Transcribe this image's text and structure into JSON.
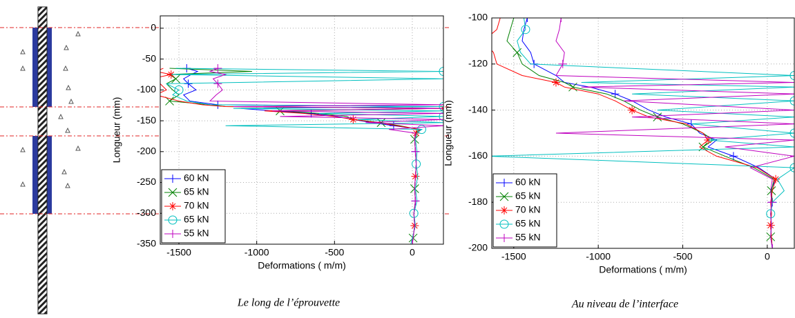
{
  "chart_data": [
    {
      "type": "line",
      "xlabel": "Deformations (  m/m)",
      "ylabel": "Longueur (mm)",
      "caption": "Le long de l’éprouvette",
      "xlim": [
        -1620,
        200
      ],
      "ylim": [
        -350,
        20
      ],
      "xticks": [
        -1500,
        -1000,
        -500,
        0
      ],
      "yticks": [
        0,
        -50,
        -100,
        -150,
        -200,
        -250,
        -300,
        -350
      ],
      "grid": true,
      "legend": "lower left",
      "series": [
        {
          "name": "60 kN",
          "color": "#0000ff",
          "marker": "+",
          "x": [
            -1450,
            -1380,
            -1420,
            -1470,
            -1440,
            -1390,
            -1470,
            -1430,
            -1250,
            200,
            -1100,
            -900,
            -650,
            -480,
            -380,
            -260,
            -120,
            60,
            20,
            15,
            20,
            25,
            20,
            15,
            20,
            10,
            15,
            5,
            0
          ],
          "values": [
            -65,
            -70,
            -75,
            -82,
            -90,
            -100,
            -108,
            -118,
            -124,
            -127,
            -130,
            -134,
            -138,
            -143,
            -148,
            -153,
            -158,
            -164,
            -170,
            -180,
            -200,
            -220,
            -240,
            -260,
            -280,
            -300,
            -320,
            -340,
            -350
          ]
        },
        {
          "name": "65 kN",
          "color": "#008000",
          "marker": "x",
          "x": [
            -1560,
            -1030,
            -1560,
            -1520,
            -1580,
            -1540,
            -1500,
            -1560,
            -1300,
            -1200,
            200,
            -850,
            -600,
            -420,
            -380,
            -200,
            -80,
            40,
            20,
            15,
            20,
            25,
            20,
            15,
            20,
            10,
            15,
            5,
            0
          ],
          "values": [
            -65,
            -70,
            -75,
            -82,
            -90,
            -100,
            -108,
            -118,
            -124,
            -127,
            -130,
            -134,
            -138,
            -143,
            -148,
            -153,
            -158,
            -164,
            -170,
            -180,
            -200,
            -220,
            -240,
            -260,
            -280,
            -300,
            -320,
            -340,
            -350
          ]
        },
        {
          "name": "70 kN",
          "color": "#ff0000",
          "marker": "*",
          "x": [
            -1600,
            -1650,
            -1550,
            -1680,
            -1620,
            -1580,
            -1650,
            -1500,
            -1350,
            -1200,
            200,
            -950,
            -700,
            -500,
            -380,
            -220,
            -100,
            50,
            25,
            15,
            20,
            25,
            20,
            15,
            20,
            10,
            15,
            5,
            0
          ],
          "values": [
            -65,
            -70,
            -75,
            -82,
            -90,
            -100,
            -108,
            -118,
            -124,
            -127,
            -130,
            -134,
            -138,
            -143,
            -148,
            -153,
            -158,
            -164,
            -170,
            -180,
            -200,
            -220,
            -240,
            -260,
            -280,
            -300,
            -320,
            -340,
            -350
          ]
        },
        {
          "name": "65 kN",
          "color": "#00bfbf",
          "marker": "o",
          "x": [
            -1520,
            200,
            -1550,
            200,
            -1580,
            -1500,
            -1540,
            -1450,
            -1300,
            200,
            -1150,
            200,
            -600,
            200,
            -350,
            200,
            -1200,
            60,
            30,
            20,
            30,
            25,
            35,
            20,
            30,
            10,
            20,
            0,
            -10
          ],
          "values": [
            -65,
            -70,
            -75,
            -82,
            -90,
            -100,
            -108,
            -118,
            -124,
            -127,
            -130,
            -134,
            -138,
            -143,
            -148,
            -153,
            -158,
            -164,
            -170,
            -180,
            -200,
            -220,
            -240,
            -260,
            -280,
            -300,
            -320,
            -340,
            -350
          ]
        },
        {
          "name": "55 kN",
          "color": "#bf00bf",
          "marker": "+",
          "x": [
            -1250,
            -1300,
            -1200,
            -1280,
            -1250,
            -1220,
            -1260,
            -1300,
            200,
            -1150,
            200,
            -900,
            200,
            -850,
            200,
            -300,
            200,
            -150,
            20,
            15,
            20,
            25,
            20,
            15,
            20,
            10,
            15,
            5,
            0
          ],
          "values": [
            -65,
            -70,
            -75,
            -82,
            -90,
            -100,
            -108,
            -118,
            -124,
            -127,
            -130,
            -134,
            -138,
            -143,
            -148,
            -153,
            -158,
            -164,
            -170,
            -180,
            -200,
            -220,
            -240,
            -260,
            -280,
            -300,
            -320,
            -340,
            -350
          ]
        }
      ]
    },
    {
      "type": "line",
      "xlabel": "Deformations (  m/m)",
      "ylabel": "Longueur (mm)",
      "caption": "Au niveau de l’interface",
      "xlim": [
        -1630,
        160
      ],
      "ylim": [
        -200,
        -100
      ],
      "xticks": [
        -1500,
        -1000,
        -500,
        0
      ],
      "yticks": [
        -100,
        -120,
        -140,
        -160,
        -180,
        -200
      ],
      "grid": true,
      "legend": "lower left",
      "series": [
        {
          "name": "60 kN",
          "color": "#0000ff",
          "marker": "+",
          "x": [
            -1420,
            -1440,
            -1450,
            -1400,
            -1380,
            -1250,
            -1200,
            -1050,
            -900,
            -800,
            -700,
            -600,
            -450,
            -400,
            -300,
            -350,
            -200,
            -50,
            50,
            20,
            30,
            20,
            25,
            20,
            30
          ],
          "values": [
            -100,
            -105,
            -110,
            -115,
            -120,
            -125,
            -128,
            -130,
            -133,
            -136,
            -140,
            -143,
            -146,
            -150,
            -153,
            -156,
            -160,
            -165,
            -170,
            -175,
            -180,
            -185,
            -190,
            -195,
            -200
          ]
        },
        {
          "name": "65 kN",
          "color": "#008000",
          "marker": "x",
          "x": [
            -1500,
            -1520,
            -1540,
            -1480,
            -1450,
            -1350,
            -1200,
            -1150,
            -950,
            -850,
            -750,
            -650,
            -500,
            -380,
            -320,
            -380,
            -250,
            -80,
            40,
            25,
            30,
            20,
            25,
            20,
            30
          ],
          "values": [
            -100,
            -105,
            -110,
            -115,
            -120,
            -125,
            -128,
            -130,
            -133,
            -136,
            -140,
            -143,
            -146,
            -150,
            -153,
            -156,
            -160,
            -165,
            -170,
            -175,
            -180,
            -185,
            -190,
            -195,
            -200
          ]
        },
        {
          "name": "70 kN",
          "color": "#ff0000",
          "marker": "*",
          "x": [
            -1580,
            -1600,
            -1680,
            -1620,
            -1600,
            -1450,
            -1250,
            -1200,
            -1000,
            -900,
            -800,
            -700,
            -480,
            -380,
            -350,
            -400,
            -300,
            -60,
            50,
            30,
            20,
            25,
            20,
            25,
            30
          ],
          "values": [
            -100,
            -105,
            -110,
            -115,
            -120,
            -125,
            -128,
            -130,
            -133,
            -136,
            -140,
            -143,
            -146,
            -150,
            -153,
            -156,
            -160,
            -165,
            -170,
            -175,
            -180,
            -185,
            -190,
            -195,
            -200
          ]
        },
        {
          "name": "65 kN",
          "color": "#00bfbf",
          "marker": "o",
          "x": [
            -1440,
            -1430,
            -1480,
            -1460,
            -1400,
            160,
            -1100,
            160,
            -800,
            160,
            -650,
            160,
            -450,
            160,
            -350,
            160,
            -1650,
            160,
            60,
            100,
            30,
            20,
            25,
            20,
            30
          ],
          "values": [
            -100,
            -105,
            -110,
            -115,
            -120,
            -125,
            -128,
            -130,
            -133,
            -136,
            -140,
            -143,
            -146,
            -150,
            -153,
            -156,
            -160,
            -165,
            -170,
            -175,
            -180,
            -185,
            -190,
            -195,
            -200
          ]
        },
        {
          "name": "55 kN",
          "color": "#bf00bf",
          "marker": "+",
          "x": [
            -1220,
            -1230,
            -1250,
            -1200,
            -1210,
            -1250,
            160,
            -1100,
            160,
            -850,
            160,
            -800,
            160,
            -1250,
            160,
            -250,
            160,
            -100,
            30,
            20,
            25,
            20,
            25,
            20,
            30
          ],
          "values": [
            -100,
            -105,
            -110,
            -115,
            -120,
            -125,
            -128,
            -130,
            -133,
            -136,
            -140,
            -143,
            -146,
            -150,
            -153,
            -156,
            -160,
            -165,
            -170,
            -175,
            -180,
            -185,
            -190,
            -195,
            -200
          ]
        }
      ]
    }
  ]
}
